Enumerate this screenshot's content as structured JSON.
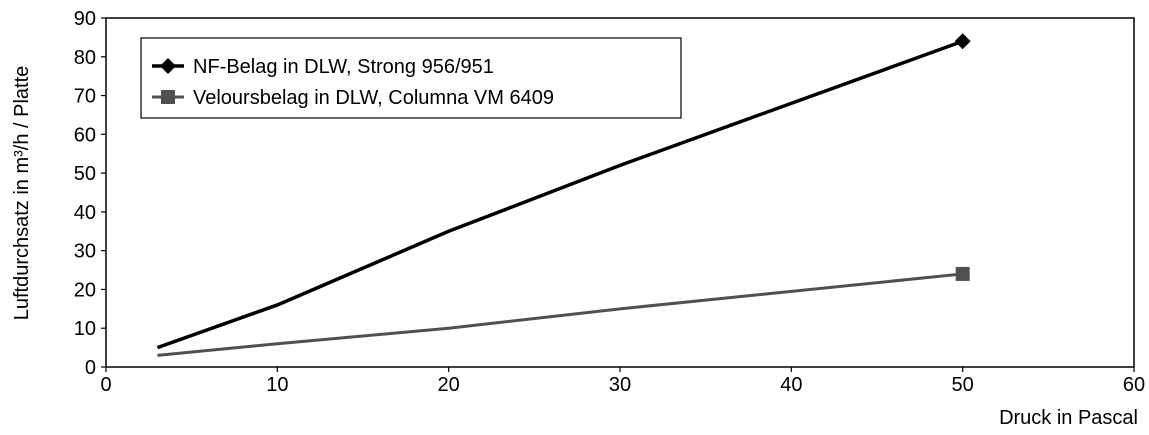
{
  "chart_data": {
    "type": "line",
    "title": "",
    "xlabel": "Druck in Pascal",
    "ylabel": "Luftdurchsatz in m³/h / Platte",
    "xlim": [
      0,
      60
    ],
    "ylim": [
      0,
      90
    ],
    "x_ticks": [
      0,
      10,
      20,
      30,
      40,
      50,
      60
    ],
    "y_ticks": [
      0,
      10,
      20,
      30,
      40,
      50,
      60,
      70,
      80,
      90
    ],
    "grid": false,
    "legend_position": "top-left",
    "series": [
      {
        "name": "NF-Belag in DLW, Strong 956/951",
        "color": "#000000",
        "marker": "diamond",
        "x": [
          3,
          10,
          20,
          30,
          50
        ],
        "y": [
          5,
          16,
          35,
          52,
          84
        ]
      },
      {
        "name": "Veloursbelag in DLW, Columna VM 6409",
        "color": "#505050",
        "marker": "square",
        "x": [
          3,
          10,
          20,
          30,
          50
        ],
        "y": [
          3,
          6,
          10,
          15,
          24
        ]
      }
    ]
  }
}
